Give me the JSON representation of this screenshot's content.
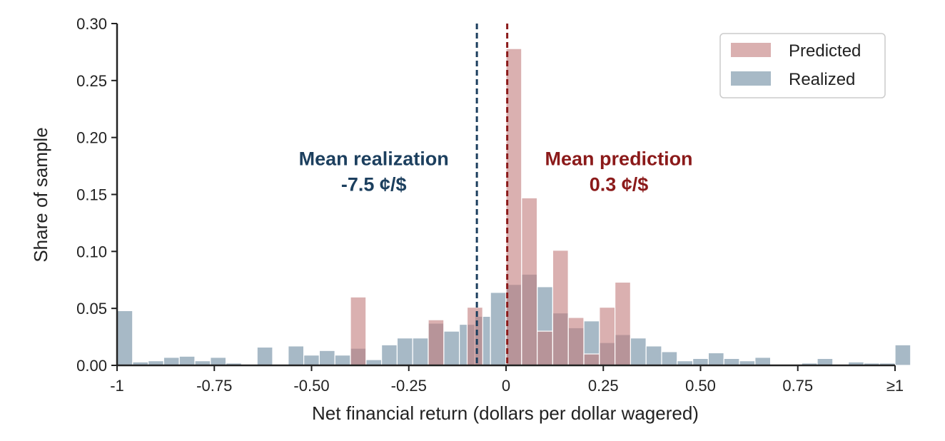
{
  "chart_data": {
    "type": "bar",
    "xlabel": "Net financial return (dollars per dollar wagered)",
    "ylabel": "Share of sample",
    "xlim": [
      -1,
      1
    ],
    "ylim": [
      0,
      0.3
    ],
    "bin_width": 0.04,
    "x_ticks": [
      {
        "value": -1,
        "label": "-1"
      },
      {
        "value": -0.75,
        "label": "-0.75"
      },
      {
        "value": -0.5,
        "label": "-0.50"
      },
      {
        "value": -0.25,
        "label": "-0.25"
      },
      {
        "value": 0,
        "label": "0"
      },
      {
        "value": 0.25,
        "label": "0.25"
      },
      {
        "value": 0.5,
        "label": "0.50"
      },
      {
        "value": 0.75,
        "label": "0.75"
      },
      {
        "value": 1,
        "label": "≥1"
      }
    ],
    "y_ticks": [
      {
        "value": 0,
        "label": "0.00"
      },
      {
        "value": 0.05,
        "label": "0.05"
      },
      {
        "value": 0.1,
        "label": "0.10"
      },
      {
        "value": 0.15,
        "label": "0.15"
      },
      {
        "value": 0.2,
        "label": "0.20"
      },
      {
        "value": 0.25,
        "label": "0.25"
      },
      {
        "value": 0.3,
        "label": "0.30"
      }
    ],
    "legend_position": "top-right",
    "grid": false,
    "series": [
      {
        "name": "Predicted",
        "color": "#c27b7b",
        "opacity": 0.6,
        "bars": [
          {
            "x": -0.4,
            "value": 0.06
          },
          {
            "x": -0.2,
            "value": 0.04
          },
          {
            "x": -0.1,
            "value": 0.051
          },
          {
            "x": 0.0,
            "value": 0.278
          },
          {
            "x": 0.04,
            "value": 0.147
          },
          {
            "x": 0.08,
            "value": 0.03
          },
          {
            "x": 0.12,
            "value": 0.101
          },
          {
            "x": 0.16,
            "value": 0.042
          },
          {
            "x": 0.2,
            "value": 0.01
          },
          {
            "x": 0.24,
            "value": 0.051
          },
          {
            "x": 0.28,
            "value": 0.073
          }
        ]
      },
      {
        "name": "Realized",
        "color": "#6d8aa0",
        "opacity": 0.6,
        "bars": [
          {
            "x": -1.0,
            "value": 0.048
          },
          {
            "x": -0.96,
            "value": 0.003
          },
          {
            "x": -0.92,
            "value": 0.004
          },
          {
            "x": -0.88,
            "value": 0.007
          },
          {
            "x": -0.84,
            "value": 0.008
          },
          {
            "x": -0.8,
            "value": 0.004
          },
          {
            "x": -0.76,
            "value": 0.007
          },
          {
            "x": -0.72,
            "value": 0.002
          },
          {
            "x": -0.68,
            "value": 0.001
          },
          {
            "x": -0.64,
            "value": 0.016
          },
          {
            "x": -0.6,
            "value": 0.001
          },
          {
            "x": -0.56,
            "value": 0.017
          },
          {
            "x": -0.52,
            "value": 0.009
          },
          {
            "x": -0.48,
            "value": 0.013
          },
          {
            "x": -0.44,
            "value": 0.009
          },
          {
            "x": -0.4,
            "value": 0.015
          },
          {
            "x": -0.36,
            "value": 0.005
          },
          {
            "x": -0.32,
            "value": 0.018
          },
          {
            "x": -0.28,
            "value": 0.024
          },
          {
            "x": -0.24,
            "value": 0.024
          },
          {
            "x": -0.2,
            "value": 0.037
          },
          {
            "x": -0.16,
            "value": 0.03
          },
          {
            "x": -0.12,
            "value": 0.036
          },
          {
            "x": -0.08,
            "value": 0.043
          },
          {
            "x": -0.04,
            "value": 0.064
          },
          {
            "x": 0.0,
            "value": 0.071
          },
          {
            "x": 0.04,
            "value": 0.08
          },
          {
            "x": 0.08,
            "value": 0.069
          },
          {
            "x": 0.12,
            "value": 0.046
          },
          {
            "x": 0.16,
            "value": 0.033
          },
          {
            "x": 0.2,
            "value": 0.039
          },
          {
            "x": 0.24,
            "value": 0.02
          },
          {
            "x": 0.28,
            "value": 0.027
          },
          {
            "x": 0.32,
            "value": 0.024
          },
          {
            "x": 0.36,
            "value": 0.017
          },
          {
            "x": 0.4,
            "value": 0.012
          },
          {
            "x": 0.44,
            "value": 0.004
          },
          {
            "x": 0.48,
            "value": 0.006
          },
          {
            "x": 0.52,
            "value": 0.011
          },
          {
            "x": 0.56,
            "value": 0.006
          },
          {
            "x": 0.6,
            "value": 0.004
          },
          {
            "x": 0.64,
            "value": 0.007
          },
          {
            "x": 0.68,
            "value": 0.001
          },
          {
            "x": 0.76,
            "value": 0.002
          },
          {
            "x": 0.8,
            "value": 0.006
          },
          {
            "x": 0.84,
            "value": 0.001
          },
          {
            "x": 0.88,
            "value": 0.003
          },
          {
            "x": 0.92,
            "value": 0.002
          },
          {
            "x": 0.96,
            "value": 0.002
          },
          {
            "x": 1.0,
            "value": 0.018
          }
        ]
      }
    ],
    "reference_lines": [
      {
        "name": "mean-realization",
        "x": -0.075,
        "color": "#1c3f5e"
      },
      {
        "name": "mean-prediction",
        "x": 0.003,
        "color": "#8b1a1a"
      }
    ],
    "annotations": [
      {
        "name": "mean-realization-annotation",
        "lines": [
          "Mean realization",
          "-7.5 ¢/$"
        ],
        "color": "#1c3f5e",
        "x": -0.34,
        "y": 0.19
      },
      {
        "name": "mean-prediction-annotation",
        "lines": [
          "Mean prediction",
          "0.3 ¢/$"
        ],
        "color": "#8b1a1a",
        "x": 0.29,
        "y": 0.19
      }
    ]
  }
}
